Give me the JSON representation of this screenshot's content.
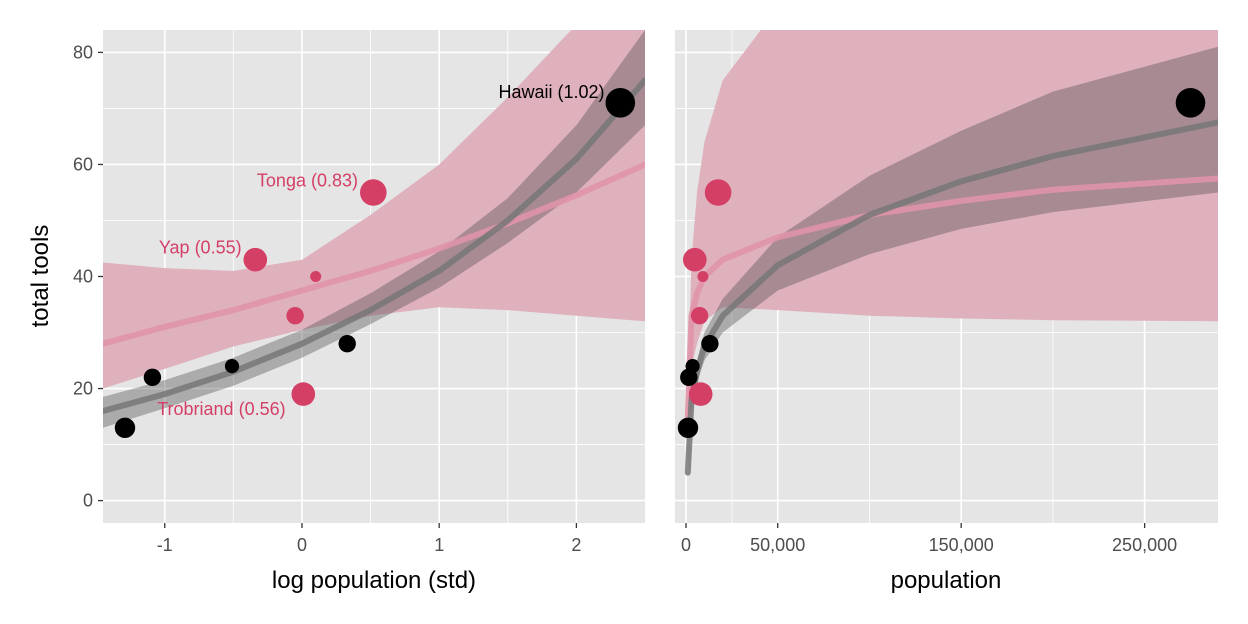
{
  "colors": {
    "panel_bg": "#e5e5e5",
    "grid": "#ffffff",
    "black_points": "#000000",
    "red_points": "#d43f66",
    "red_band": "#dfb1bd",
    "red_line": "#e094a8",
    "black_band_inner": "#4d4d4d",
    "black_line": "#777777"
  },
  "chart_data": [
    {
      "type": "scatter",
      "panel": "left",
      "xlabel": "log population (std)",
      "ylabel": "total tools",
      "xlim": [
        -1.45,
        2.5
      ],
      "ylim": [
        -4,
        84
      ],
      "x_ticks": [
        -1,
        0,
        1,
        2
      ],
      "x_tick_labels": [
        "-1",
        "0",
        "1",
        "2"
      ],
      "y_ticks": [
        0,
        20,
        40,
        60,
        80
      ],
      "y_tick_labels": [
        "0",
        "20",
        "40",
        "60",
        "80"
      ],
      "points": [
        {
          "x": -1.29,
          "y": 13,
          "color": "black",
          "size": 4,
          "label": ""
        },
        {
          "x": -1.09,
          "y": 22,
          "color": "black",
          "size": 3,
          "label": ""
        },
        {
          "x": -0.51,
          "y": 24,
          "color": "black",
          "size": 2,
          "label": ""
        },
        {
          "x": -0.34,
          "y": 43,
          "color": "red",
          "size": 5,
          "label": "Yap (0.55)"
        },
        {
          "x": -0.05,
          "y": 33,
          "color": "red",
          "size": 3,
          "label": ""
        },
        {
          "x": 0.01,
          "y": 19,
          "color": "red",
          "size": 5,
          "label": "Trobriand (0.56)"
        },
        {
          "x": 0.1,
          "y": 40,
          "color": "red",
          "size": 1,
          "label": ""
        },
        {
          "x": 0.33,
          "y": 28,
          "color": "black",
          "size": 3,
          "label": ""
        },
        {
          "x": 0.52,
          "y": 55,
          "color": "red",
          "size": 6,
          "label": "Tonga (0.83)"
        },
        {
          "x": 2.32,
          "y": 71,
          "color": "black",
          "size": 7,
          "label": "Hawaii (1.02)"
        }
      ],
      "series": [
        {
          "model": "red",
          "x": [
            -1.45,
            -1.0,
            -0.5,
            0.0,
            0.5,
            1.0,
            1.5,
            2.0,
            2.5
          ],
          "mean": [
            28,
            31,
            34,
            37.5,
            41,
            45,
            49.5,
            54.5,
            60
          ],
          "lower": [
            20,
            23.5,
            27.5,
            30.5,
            33,
            34.5,
            34,
            33,
            32
          ],
          "upper": [
            42.5,
            41.5,
            41,
            43,
            51,
            60,
            72,
            85,
            99
          ]
        },
        {
          "model": "black",
          "x": [
            -1.45,
            -1.0,
            -0.5,
            0.0,
            0.5,
            1.0,
            1.5,
            2.0,
            2.5
          ],
          "mean": [
            16,
            19,
            23,
            28,
            34,
            41,
            50,
            61,
            75
          ],
          "lower": [
            13,
            16.5,
            20.5,
            25.5,
            31.5,
            38,
            46,
            55,
            67
          ],
          "upper": [
            18.5,
            21.5,
            25.5,
            30.5,
            37,
            44.5,
            54,
            67,
            84
          ]
        }
      ]
    },
    {
      "type": "scatter",
      "panel": "right",
      "xlabel": "population",
      "ylabel": "",
      "xlim": [
        -6000,
        290000
      ],
      "ylim": [
        -4,
        84
      ],
      "x_ticks": [
        0,
        50000,
        150000,
        250000
      ],
      "x_tick_labels": [
        "0",
        "50,000",
        "150,000",
        "250,000"
      ],
      "points": [
        {
          "x": 1100,
          "y": 13,
          "color": "black",
          "size": 4
        },
        {
          "x": 1500,
          "y": 22,
          "color": "black",
          "size": 3
        },
        {
          "x": 3600,
          "y": 24,
          "color": "black",
          "size": 2
        },
        {
          "x": 4791,
          "y": 43,
          "color": "red",
          "size": 5
        },
        {
          "x": 7400,
          "y": 33,
          "color": "red",
          "size": 3
        },
        {
          "x": 8000,
          "y": 19,
          "color": "red",
          "size": 5
        },
        {
          "x": 9200,
          "y": 40,
          "color": "red",
          "size": 1
        },
        {
          "x": 13000,
          "y": 28,
          "color": "black",
          "size": 3
        },
        {
          "x": 17500,
          "y": 55,
          "color": "red",
          "size": 6
        },
        {
          "x": 275000,
          "y": 71,
          "color": "black",
          "size": 7
        }
      ],
      "series": [
        {
          "model": "red",
          "x": [
            1000,
            3000,
            6000,
            10000,
            20000,
            50000,
            100000,
            150000,
            200000,
            290000
          ],
          "mean": [
            15,
            33,
            37,
            40,
            43,
            47,
            51,
            53.5,
            55.5,
            57.5
          ],
          "lower": [
            14,
            24,
            28,
            32,
            34.5,
            34,
            33,
            32.5,
            32.2,
            32
          ],
          "upper": [
            20,
            43,
            55,
            64,
            75,
            88,
            95,
            95,
            95,
            95
          ]
        },
        {
          "model": "black",
          "x": [
            1000,
            3000,
            6000,
            10000,
            20000,
            50000,
            100000,
            150000,
            200000,
            290000
          ],
          "mean": [
            5,
            18,
            23,
            27.5,
            33,
            42,
            51,
            57,
            61.5,
            67.5
          ],
          "lower": [
            5,
            16,
            21,
            25,
            30,
            37.5,
            44,
            48.5,
            51.5,
            55
          ],
          "upper": [
            5,
            20,
            25,
            30,
            36,
            47,
            58,
            66,
            73,
            81
          ]
        }
      ]
    }
  ]
}
